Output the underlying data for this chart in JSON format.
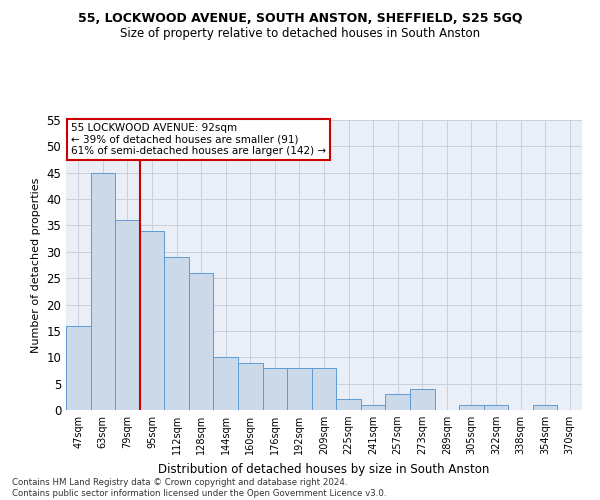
{
  "title": "55, LOCKWOOD AVENUE, SOUTH ANSTON, SHEFFIELD, S25 5GQ",
  "subtitle": "Size of property relative to detached houses in South Anston",
  "xlabel": "Distribution of detached houses by size in South Anston",
  "ylabel": "Number of detached properties",
  "categories": [
    "47sqm",
    "63sqm",
    "79sqm",
    "95sqm",
    "112sqm",
    "128sqm",
    "144sqm",
    "160sqm",
    "176sqm",
    "192sqm",
    "209sqm",
    "225sqm",
    "241sqm",
    "257sqm",
    "273sqm",
    "289sqm",
    "305sqm",
    "322sqm",
    "338sqm",
    "354sqm",
    "370sqm"
  ],
  "values": [
    16,
    45,
    36,
    34,
    29,
    26,
    10,
    9,
    8,
    8,
    8,
    2,
    1,
    3,
    4,
    0,
    1,
    1,
    0,
    1,
    0
  ],
  "bar_color": "#ccd9e8",
  "bar_edge_color": "#5b9bd5",
  "grid_color": "#c8d0dc",
  "vline_x": 2.5,
  "vline_color": "#cc0000",
  "annotation_text": "55 LOCKWOOD AVENUE: 92sqm\n← 39% of detached houses are smaller (91)\n61% of semi-detached houses are larger (142) →",
  "annotation_box_color": "#ffffff",
  "annotation_box_edge": "#cc0000",
  "ylim": [
    0,
    55
  ],
  "yticks": [
    0,
    5,
    10,
    15,
    20,
    25,
    30,
    35,
    40,
    45,
    50,
    55
  ],
  "footer": "Contains HM Land Registry data © Crown copyright and database right 2024.\nContains public sector information licensed under the Open Government Licence v3.0.",
  "bg_color": "#eaeff7"
}
